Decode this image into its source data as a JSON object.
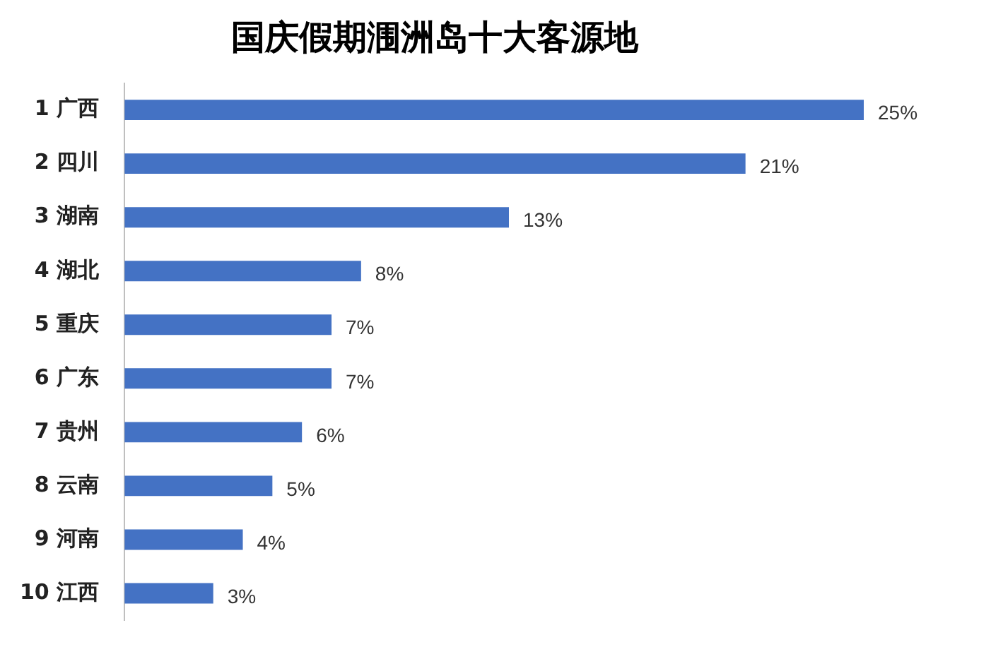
{
  "chart_data": {
    "type": "bar",
    "orientation": "horizontal",
    "title": "国庆假期涠洲岛十大客源地",
    "categories": [
      "1 广西",
      "2 四川",
      "3 湖南",
      "4 湖北",
      "5 重庆",
      "6 广东",
      "7 贵州",
      "8 云南",
      "9 河南",
      "10 江西"
    ],
    "values": [
      25,
      21,
      13,
      8,
      7,
      7,
      6,
      5,
      4,
      3
    ],
    "value_labels": [
      "25%",
      "21%",
      "13%",
      "8%",
      "7%",
      "7%",
      "6%",
      "5%",
      "4%",
      "3%"
    ],
    "color": "#4472c4",
    "legend": false,
    "tick_labels": "y"
  }
}
